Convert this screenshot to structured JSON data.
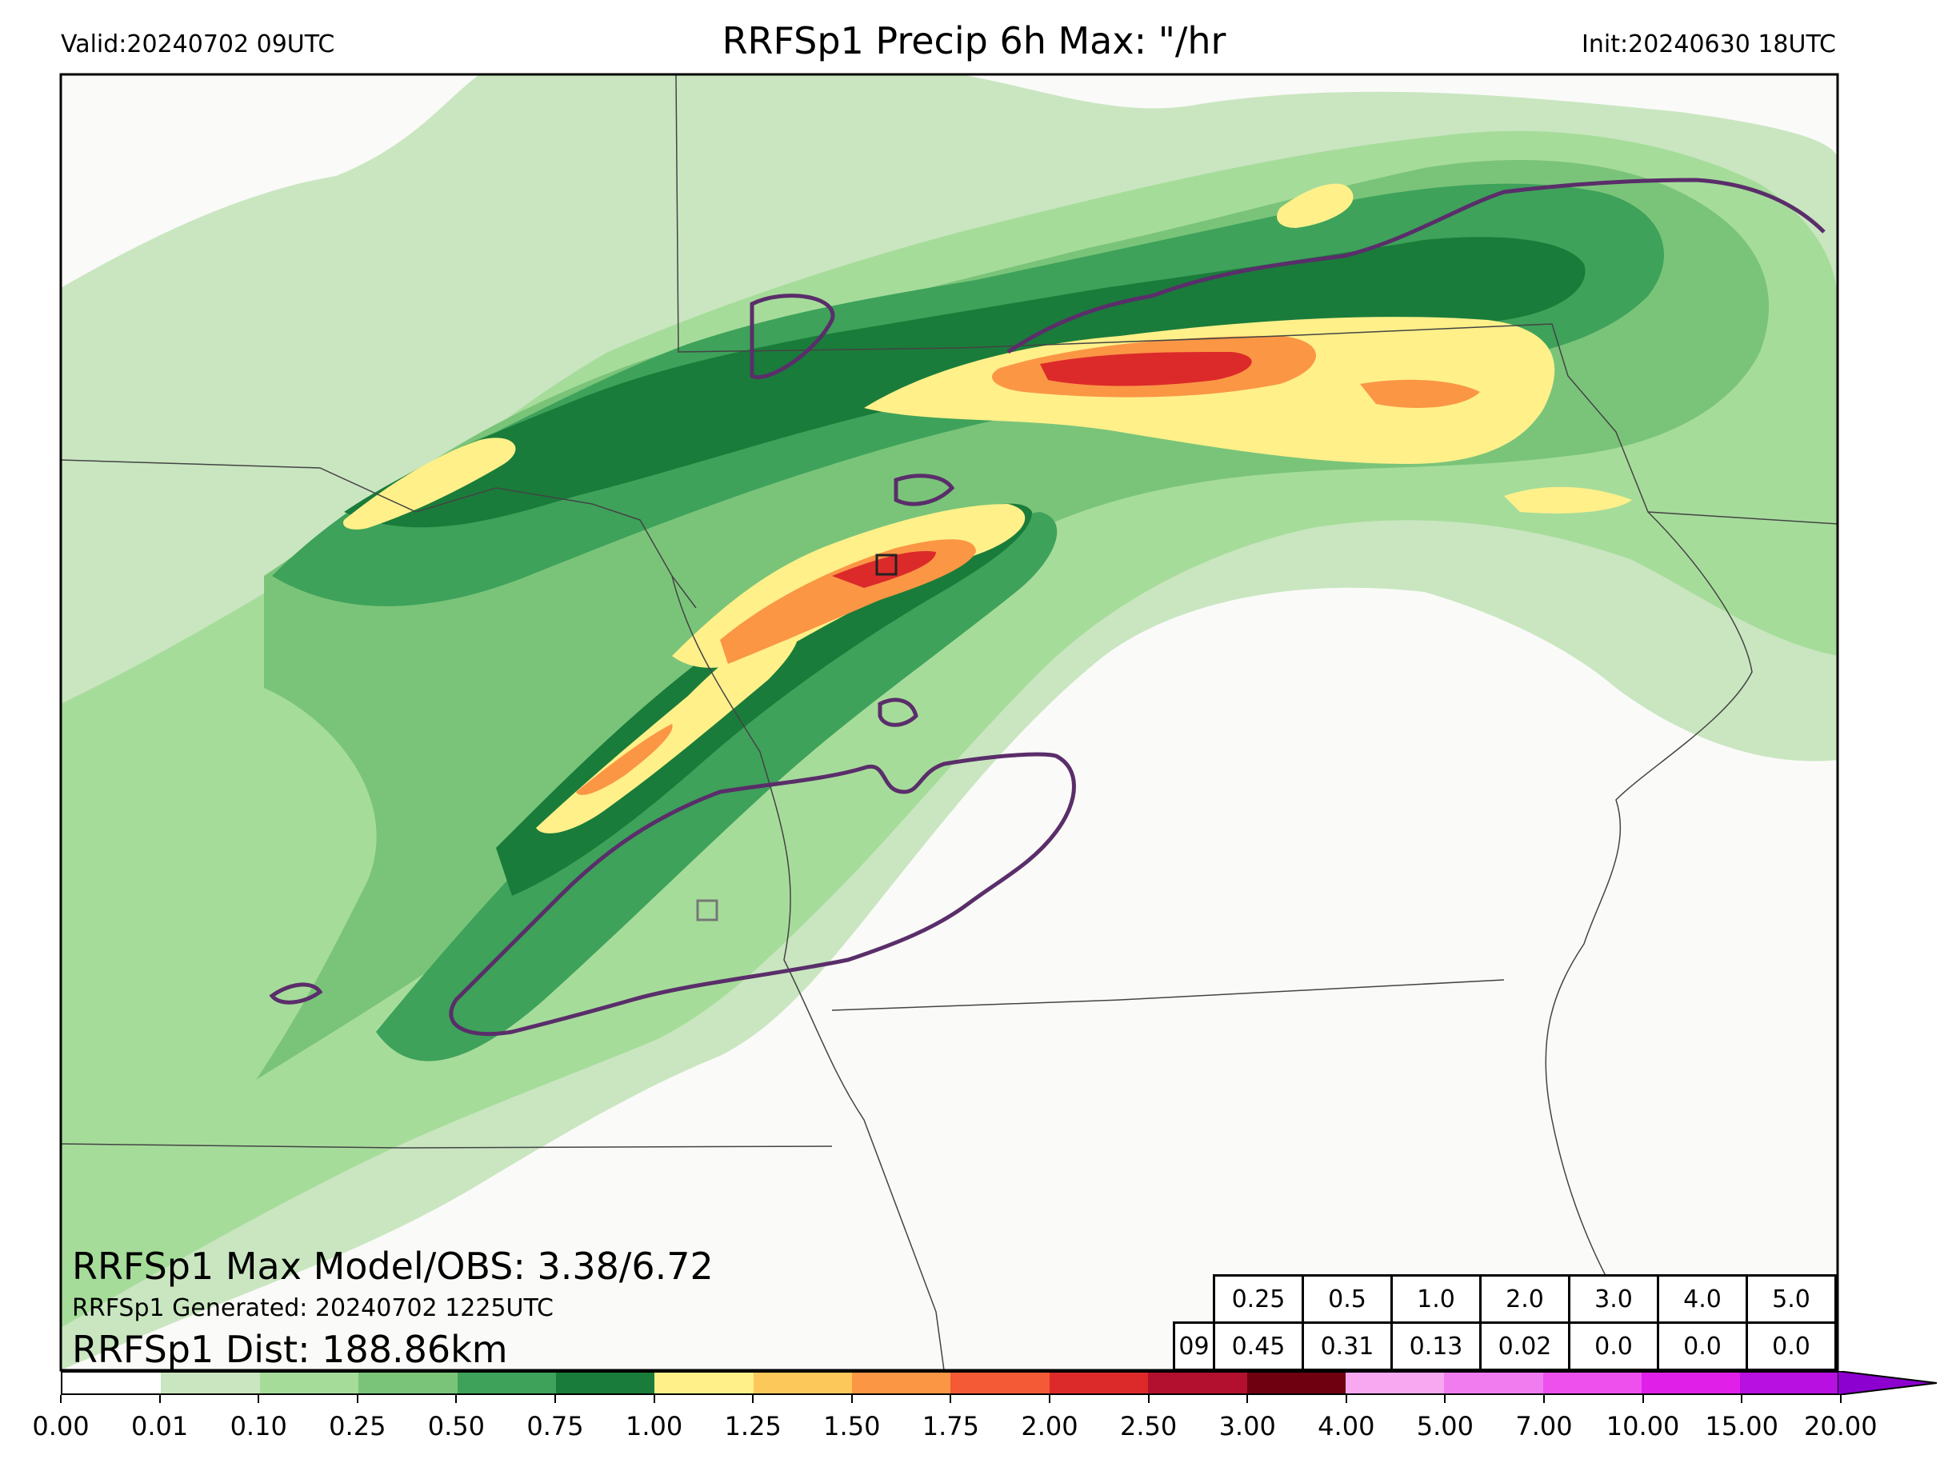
{
  "header": {
    "valid": "Valid:20240702 09UTC",
    "title": "RRFSp1 Precip 6h Max: \"/hr",
    "init": "Init:20240630 18UTC"
  },
  "stats": {
    "max_model_obs": "RRFSp1 Max Model/OBS: 3.38/6.72",
    "generated": "RRFSp1 Generated: 20240702 1225UTC",
    "dist": "RRFSp1 Dist: 188.86km"
  },
  "threshold_table": {
    "headers": [
      "0.25",
      "0.5",
      "1.0",
      "2.0",
      "3.0",
      "4.0",
      "5.0"
    ],
    "row_label": "09",
    "values": [
      "0.45",
      "0.31",
      "0.13",
      "0.02",
      "0.0",
      "0.0",
      "0.0"
    ]
  },
  "colorbar": {
    "tick_labels": [
      "0.00",
      "0.01",
      "0.10",
      "0.25",
      "0.50",
      "0.75",
      "1.00",
      "1.25",
      "1.50",
      "1.75",
      "2.00",
      "2.50",
      "3.00",
      "4.00",
      "5.00",
      "7.00",
      "10.00",
      "15.00",
      "20.00"
    ],
    "colors": [
      "#ffffff",
      "#c9e6c0",
      "#a6dc9a",
      "#7ac47a",
      "#3ea25a",
      "#1a7c3a",
      "#fff08a",
      "#fdc85a",
      "#fb9645",
      "#f55a36",
      "#dc2a2a",
      "#b2102e",
      "#6e0010",
      "#f7a8f0",
      "#f07cf0",
      "#ee50ee",
      "#e020e8",
      "#b810e0"
    ],
    "extend_color": "#8c00d0"
  },
  "map_colors": {
    "background": "#fafaf8",
    "obs_contour": "#5a2e6a",
    "border_line": "#444444"
  }
}
